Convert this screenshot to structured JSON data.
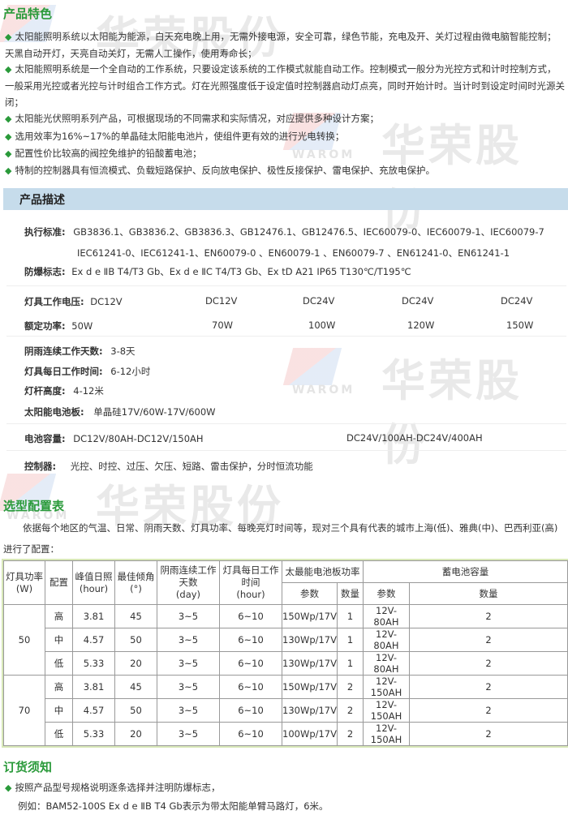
{
  "watermark": {
    "brand": "华荣股份",
    "logo_text": "WAROM"
  },
  "features": {
    "title": "产品特色",
    "items": [
      "太阳能照明系统以太阳能为能源，白天充电晚上用，无需外接电源，安全可靠，绿色节能，充电及开、关灯过程由微电脑智能控制；天黑自动开灯，天亮自动关灯，无需人工操作，使用寿命长；",
      "太阳能照明系统是一个全自动的工作系统，只要设定该系统的工作模式就能自动工作。控制模式一般分为光控方式和计时控制方式，一般采用光控或者光控与计时组合工作方式。灯在光照强度低于设定值时控制器启动灯点亮，同时开始计时。当计时到设定时间时光源关闭；",
      "太阳能光伏照明系列产品，可根据现场的不同需求和实际情况，对应提供多种设计方案；",
      "选用效率为16%~17%的单晶硅太阳能电池片，使组件更有效的进行光电转换；",
      "配置性价比较高的阀控免维护的铅酸蓄电池；",
      "特制的控制器具有恒流模式、负载短路保护、反向放电保护、极性反接保护、雷电保护、充放电保护。"
    ]
  },
  "description": {
    "title": "产品描述",
    "standards_label": "执行标准:",
    "standards_line1": "GB3836.1、GB3836.2、GB3836.3、GB12476.1、GB12476.5、IEC60079-0、IEC60079-1、IEC60079-7",
    "standards_line2": "IEC61241-0、IEC61241-1、EN60079-0 、EN60079-1 、EN60079-7 、EN61241-0、EN61241-1",
    "ex_label": "防爆标志:",
    "ex_value": "Ex d e ⅡB T4/T3 Gb、Ex d e ⅡC T4/T3 Gb、Ex tD A21 IP65 T130℃/T195℃",
    "voltage_label": "灯具工作电压:",
    "voltages": [
      "DC12V",
      "DC12V",
      "DC24V",
      "DC24V",
      "DC24V"
    ],
    "power_label": "额定功率:",
    "powers": [
      "50W",
      "70W",
      "100W",
      "120W",
      "150W"
    ],
    "rain_label": "阴雨连续工作天数:",
    "rain_value": "3-8天",
    "daily_label": "灯具每日工作时间:",
    "daily_value": "6-12小时",
    "pole_label": "灯杆高度:",
    "pole_value": "4-12米",
    "panel_label": "太阳能电池板:",
    "panel_value": "单晶硅17V/60W-17V/600W",
    "battery_label": "电池容量:",
    "battery_value1": "DC12V/80AH-DC12V/150AH",
    "battery_value2": "DC24V/100AH-DC24V/400AH",
    "controller_label": "控制器:",
    "controller_value": "光控、时控、过压、欠压、短路、雷击保护，分时恒流功能"
  },
  "selection": {
    "title": "选型配置表",
    "intro": "依据每个地区的气温、日常、阴雨天数、灯具功率、每晚亮灯时间等，现对三个具有代表的城市上海(低)、雅典(中)、巴西利亚(高)进行了配置：",
    "headers": {
      "power": "灯具功率",
      "power_unit": "(W)",
      "config": "配置",
      "sun": "峰值日照",
      "sun_unit": "(hour)",
      "angle": "最佳倾角",
      "angle_unit": "(°)",
      "rain": "阴雨连续工作天数",
      "rain_unit": "(day)",
      "daily": "灯具每日工作时间",
      "daily_unit": "(hour)",
      "panel": "太最能电池板功率",
      "battery": "蓄电池容量",
      "param": "参数",
      "qty": "数量"
    },
    "groups": [
      {
        "power": "50",
        "rows": [
          {
            "config": "高",
            "sun": "3.81",
            "angle": "45",
            "rain": "3~5",
            "daily": "6~10",
            "panel": "150Wp/17V",
            "panel_qty": "1",
            "battery": "12V-80AH",
            "battery_qty": "2"
          },
          {
            "config": "中",
            "sun": "4.57",
            "angle": "50",
            "rain": "3~5",
            "daily": "6~10",
            "panel": "130Wp/17V",
            "panel_qty": "1",
            "battery": "12V-80AH",
            "battery_qty": "2"
          },
          {
            "config": "低",
            "sun": "5.33",
            "angle": "20",
            "rain": "3~5",
            "daily": "6~10",
            "panel": "130Wp/17V",
            "panel_qty": "1",
            "battery": "12V-80AH",
            "battery_qty": "2"
          }
        ]
      },
      {
        "power": "70",
        "rows": [
          {
            "config": "高",
            "sun": "3.81",
            "angle": "45",
            "rain": "3~5",
            "daily": "6~10",
            "panel": "150Wp/17V",
            "panel_qty": "2",
            "battery": "12V-150AH",
            "battery_qty": "2"
          },
          {
            "config": "中",
            "sun": "4.57",
            "angle": "50",
            "rain": "3~5",
            "daily": "6~10",
            "panel": "130Wp/17V",
            "panel_qty": "2",
            "battery": "12V-150AH",
            "battery_qty": "2"
          },
          {
            "config": "低",
            "sun": "5.33",
            "angle": "20",
            "rain": "3~5",
            "daily": "6~10",
            "panel": "100Wp/17V",
            "panel_qty": "2",
            "battery": "12V-150AH",
            "battery_qty": "2"
          }
        ]
      }
    ]
  },
  "ordering": {
    "title": "订货须知",
    "item": "按照产品型号规格说明逐条选择并注明防爆标志，",
    "example": "例如：BAM52-100S  Ex d e ⅡB T4 Gb表示为带太阳能单臂马路灯，6米。"
  },
  "colors": {
    "accent": "#2a9a3a",
    "section_bar": "#c6dceb"
  }
}
